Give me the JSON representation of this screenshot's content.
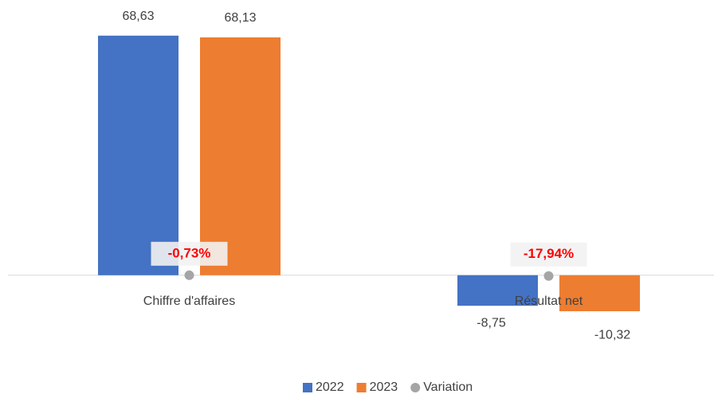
{
  "chart_data": {
    "type": "bar",
    "categories": [
      "Chiffre d'affaires",
      "Résultat net"
    ],
    "series": [
      {
        "name": "2022",
        "color": "#4472c4",
        "values": [
          68.63,
          -8.75
        ],
        "value_labels": [
          "68,63",
          "-8,75"
        ]
      },
      {
        "name": "2023",
        "color": "#ed7d31",
        "values": [
          68.13,
          -10.32
        ],
        "value_labels": [
          "68,13",
          "-10,32"
        ]
      },
      {
        "name": "Variation",
        "color": "#a5a5a5",
        "axis": "y2",
        "values": [
          -0.73,
          -17.94
        ],
        "value_labels": [
          "-0,73%",
          "-17,94%"
        ]
      }
    ],
    "ylim": [
      -12,
      72
    ],
    "y2lim": [
      -1000,
      6000
    ],
    "legend": "bottom"
  }
}
